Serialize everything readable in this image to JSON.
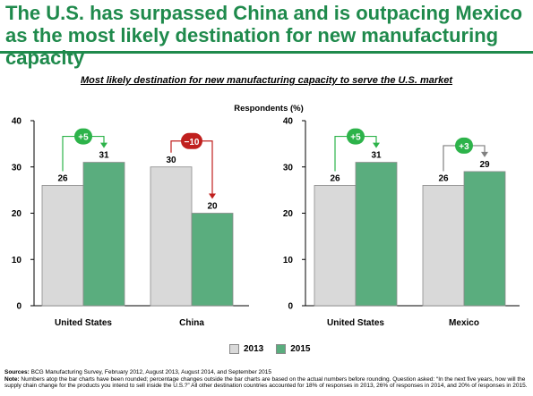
{
  "title": "The U.S. has surpassed China and is outpacing Mexico as the most likely destination for new manufacturing capacity",
  "subtitle": "Most likely destination for new manufacturing capacity to serve the U.S. market",
  "colors": {
    "title": "#1f8a4c",
    "bar_2013": "#d9d9d9",
    "bar_2015": "#5aad7e",
    "increase_badge": "#2db34a",
    "decrease_badge": "#c0201e",
    "increase_arrow_us": "#2db34a",
    "decrease_arrow": "#c0201e",
    "increase_arrow_mexico": "#808080"
  },
  "chart_data": [
    {
      "type": "bar",
      "title": "",
      "ylabel": "",
      "ylim": [
        0,
        40
      ],
      "yticks": [
        0,
        10,
        20,
        30,
        40
      ],
      "categories": [
        "United States",
        "China"
      ],
      "series": [
        {
          "name": "2013",
          "values": [
            26,
            30
          ]
        },
        {
          "name": "2015",
          "values": [
            31,
            20
          ]
        }
      ],
      "data_labels": [
        [
          "26",
          "31"
        ],
        [
          "30",
          "20"
        ]
      ],
      "changes": [
        {
          "label": "+5",
          "direction": "up",
          "arrow_color_key": "increase_arrow_us"
        },
        {
          "label": "−10",
          "direction": "down",
          "arrow_color_key": "decrease_arrow"
        }
      ],
      "legend": "bottom"
    },
    {
      "type": "bar",
      "title": "Respondents (%)",
      "ylabel": "",
      "ylim": [
        0,
        40
      ],
      "yticks": [
        0,
        10,
        20,
        30,
        40
      ],
      "categories": [
        "United States",
        "Mexico"
      ],
      "series": [
        {
          "name": "2013",
          "values": [
            26,
            26
          ]
        },
        {
          "name": "2015",
          "values": [
            31,
            29
          ]
        }
      ],
      "data_labels": [
        [
          "26",
          "31"
        ],
        [
          "26",
          "29"
        ]
      ],
      "changes": [
        {
          "label": "+5",
          "direction": "up",
          "arrow_color_key": "increase_arrow_us"
        },
        {
          "label": "+3",
          "direction": "up",
          "arrow_color_key": "increase_arrow_mexico"
        }
      ],
      "legend": "bottom"
    }
  ],
  "legend": [
    {
      "label": "2013",
      "color_key": "bar_2013"
    },
    {
      "label": "2015",
      "color_key": "bar_2015"
    }
  ],
  "footnote": {
    "sources_label": "Sources:",
    "sources_text": "BCG Manufacturing Survey, February 2012, August 2013, August 2014, and September 2015",
    "note_label": "Note:",
    "note_text": "Numbers atop the bar charts have been rounded; percentage changes outside the bar charts are based on the actual numbers before rounding. Question asked: “In the next five years, how will the supply chain change for the products you intend to sell inside the U.S.?” All other destination countries accounted for 18% of responses in 2013, 26% of responses in 2014, and 20% of responses in 2015."
  }
}
